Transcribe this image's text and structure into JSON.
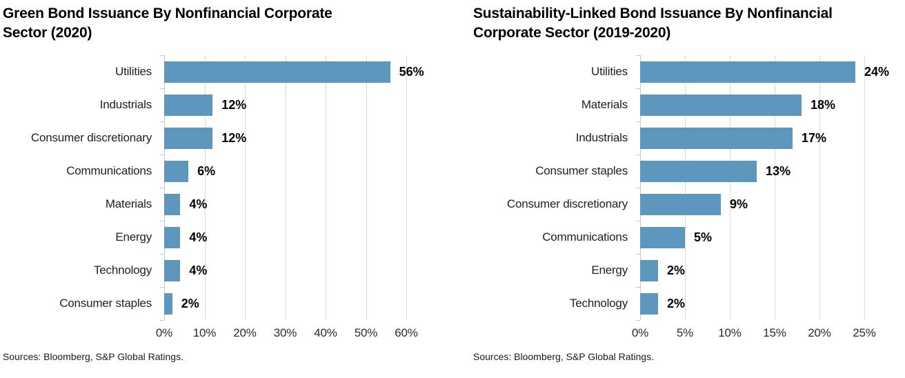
{
  "page": {
    "background": "#ffffff"
  },
  "colors": {
    "bar": "#5e97be",
    "gridline": "#d9d9d9",
    "axis_line": "#c6c6c6",
    "title_text": "#000000",
    "category_text": "#1f1f1f",
    "value_text": "#000000",
    "tick_text": "#2b2b2b",
    "source_text": "#1a1a1a"
  },
  "chart_data": [
    {
      "type": "bar",
      "orientation": "horizontal",
      "title": "Green Bond Issuance By Nonfinancial Corporate\nSector (2020)",
      "categories": [
        "Utilities",
        "Industrials",
        "Consumer discretionary",
        "Communications",
        "Materials",
        "Energy",
        "Technology",
        "Consumer staples"
      ],
      "values": [
        56,
        12,
        12,
        6,
        4,
        4,
        4,
        2
      ],
      "value_labels": [
        "56%",
        "12%",
        "12%",
        "6%",
        "4%",
        "4%",
        "4%",
        "2%"
      ],
      "xlabel": "",
      "ylabel": "",
      "xlim": [
        0,
        60
      ],
      "xticks": [
        "0%",
        "10%",
        "20%",
        "30%",
        "40%",
        "50%",
        "60%"
      ],
      "grid": "vertical",
      "legend": "none",
      "source": "Sources: Bloomberg, S&P Global Ratings."
    },
    {
      "type": "bar",
      "orientation": "horizontal",
      "title": "Sustainability-Linked Bond Issuance By Nonfinancial\nCorporate Sector (2019-2020)",
      "categories": [
        "Utilities",
        "Materials",
        "Industrials",
        "Consumer staples",
        "Consumer discretionary",
        "Communications",
        "Energy",
        "Technology"
      ],
      "values": [
        24,
        18,
        17,
        13,
        9,
        5,
        2,
        2
      ],
      "value_labels": [
        "24%",
        "18%",
        "17%",
        "13%",
        "9%",
        "5%",
        "2%",
        "2%"
      ],
      "xlabel": "",
      "ylabel": "",
      "xlim": [
        0,
        25
      ],
      "xticks": [
        "0%",
        "5%",
        "10%",
        "15%",
        "20%",
        "25%"
      ],
      "grid": "vertical",
      "legend": "none",
      "source": "Sources: Bloomberg, S&P Global Ratings."
    }
  ]
}
